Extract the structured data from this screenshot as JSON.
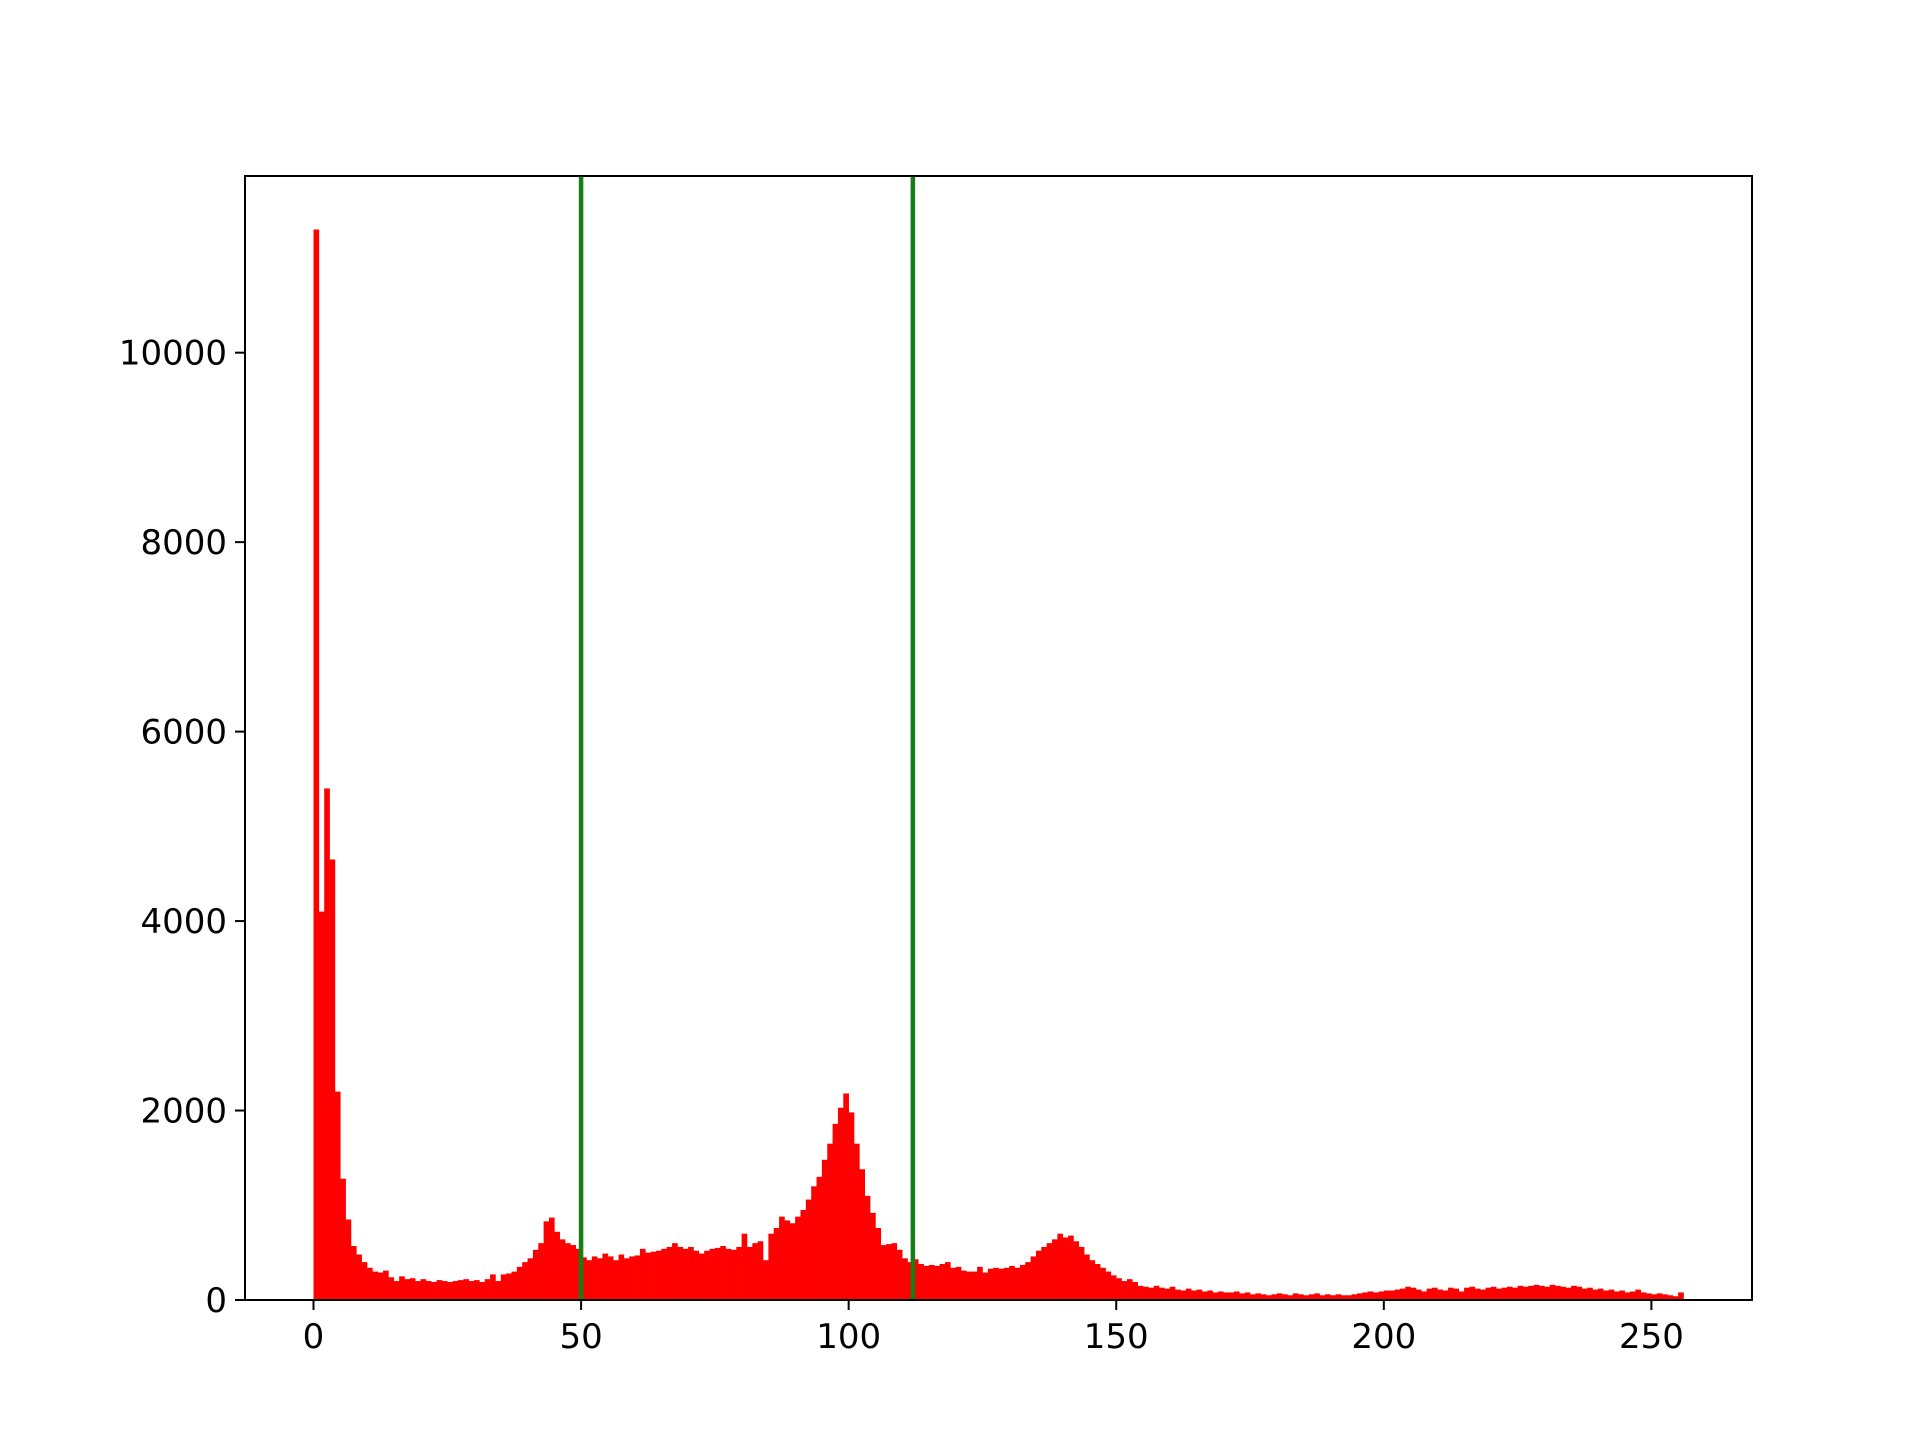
{
  "chart_data": {
    "type": "histogram",
    "color": "#ff0000",
    "bins": [
      0,
      1,
      2,
      3,
      4,
      5,
      6,
      7,
      8,
      9,
      10,
      11,
      12,
      13,
      14,
      15,
      16,
      17,
      18,
      19,
      20,
      21,
      22,
      23,
      24,
      25,
      26,
      27,
      28,
      29,
      30,
      31,
      32,
      33,
      34,
      35,
      36,
      37,
      38,
      39,
      40,
      41,
      42,
      43,
      44,
      45,
      46,
      47,
      48,
      49,
      50,
      51,
      52,
      53,
      54,
      55,
      56,
      57,
      58,
      59,
      60,
      61,
      62,
      63,
      64,
      65,
      66,
      67,
      68,
      69,
      70,
      71,
      72,
      73,
      74,
      75,
      76,
      77,
      78,
      79,
      80,
      81,
      82,
      83,
      84,
      85,
      86,
      87,
      88,
      89,
      90,
      91,
      92,
      93,
      94,
      95,
      96,
      97,
      98,
      99,
      100,
      101,
      102,
      103,
      104,
      105,
      106,
      107,
      108,
      109,
      110,
      111,
      112,
      113,
      114,
      115,
      116,
      117,
      118,
      119,
      120,
      121,
      122,
      123,
      124,
      125,
      126,
      127,
      128,
      129,
      130,
      131,
      132,
      133,
      134,
      135,
      136,
      137,
      138,
      139,
      140,
      141,
      142,
      143,
      144,
      145,
      146,
      147,
      148,
      149,
      150,
      151,
      152,
      153,
      154,
      155,
      156,
      157,
      158,
      159,
      160,
      161,
      162,
      163,
      164,
      165,
      166,
      167,
      168,
      169,
      170,
      171,
      172,
      173,
      174,
      175,
      176,
      177,
      178,
      179,
      180,
      181,
      182,
      183,
      184,
      185,
      186,
      187,
      188,
      189,
      190,
      191,
      192,
      193,
      194,
      195,
      196,
      197,
      198,
      199,
      200,
      201,
      202,
      203,
      204,
      205,
      206,
      207,
      208,
      209,
      210,
      211,
      212,
      213,
      214,
      215,
      216,
      217,
      218,
      219,
      220,
      221,
      222,
      223,
      224,
      225,
      226,
      227,
      228,
      229,
      230,
      231,
      232,
      233,
      234,
      235,
      236,
      237,
      238,
      239,
      240,
      241,
      242,
      243,
      244,
      245,
      246,
      247,
      248,
      249,
      250,
      251,
      252,
      253,
      254,
      255,
      256
    ],
    "values": [
      11300,
      4100,
      5400,
      4650,
      2200,
      1280,
      850,
      570,
      480,
      400,
      340,
      300,
      290,
      310,
      240,
      200,
      250,
      220,
      230,
      200,
      220,
      200,
      190,
      210,
      200,
      190,
      200,
      210,
      220,
      200,
      210,
      190,
      220,
      270,
      200,
      270,
      280,
      300,
      350,
      400,
      440,
      530,
      600,
      830,
      870,
      720,
      640,
      600,
      580,
      540,
      450,
      420,
      460,
      440,
      490,
      460,
      420,
      480,
      440,
      460,
      470,
      540,
      500,
      510,
      520,
      540,
      560,
      600,
      560,
      540,
      560,
      520,
      490,
      520,
      540,
      550,
      570,
      540,
      530,
      560,
      700,
      560,
      600,
      620,
      420,
      700,
      760,
      880,
      840,
      810,
      880,
      950,
      1060,
      1200,
      1300,
      1480,
      1650,
      1860,
      2030,
      2180,
      1980,
      1650,
      1380,
      1100,
      920,
      760,
      580,
      590,
      600,
      530,
      440,
      400,
      430,
      380,
      360,
      370,
      360,
      380,
      400,
      340,
      350,
      310,
      300,
      300,
      350,
      290,
      330,
      340,
      330,
      340,
      360,
      340,
      370,
      400,
      460,
      520,
      560,
      600,
      640,
      700,
      660,
      680,
      620,
      560,
      480,
      420,
      380,
      340,
      300,
      260,
      230,
      200,
      220,
      190,
      150,
      140,
      130,
      150,
      130,
      120,
      140,
      110,
      100,
      120,
      100,
      110,
      90,
      100,
      80,
      90,
      80,
      80,
      90,
      70,
      80,
      60,
      70,
      60,
      50,
      60,
      70,
      60,
      50,
      70,
      60,
      50,
      60,
      70,
      50,
      60,
      50,
      60,
      50,
      50,
      60,
      70,
      80,
      90,
      80,
      90,
      100,
      100,
      110,
      120,
      140,
      130,
      110,
      90,
      120,
      130,
      110,
      100,
      130,
      120,
      90,
      130,
      140,
      120,
      110,
      130,
      140,
      120,
      130,
      140,
      130,
      150,
      140,
      150,
      160,
      150,
      140,
      160,
      150,
      140,
      130,
      150,
      140,
      120,
      130,
      110,
      120,
      100,
      110,
      90,
      100,
      80,
      90,
      110,
      80,
      70,
      60,
      70,
      60,
      50,
      40,
      80
    ],
    "vlines": [
      {
        "x": 50,
        "color": "#157f15"
      },
      {
        "x": 112,
        "color": "#157f15"
      }
    ],
    "xlim": [
      -12.8,
      268.8
    ],
    "ylim": [
      0,
      11865
    ],
    "xticks": [
      0,
      50,
      100,
      150,
      200,
      250
    ],
    "yticks": [
      0,
      2000,
      4000,
      6000,
      8000,
      10000
    ]
  }
}
